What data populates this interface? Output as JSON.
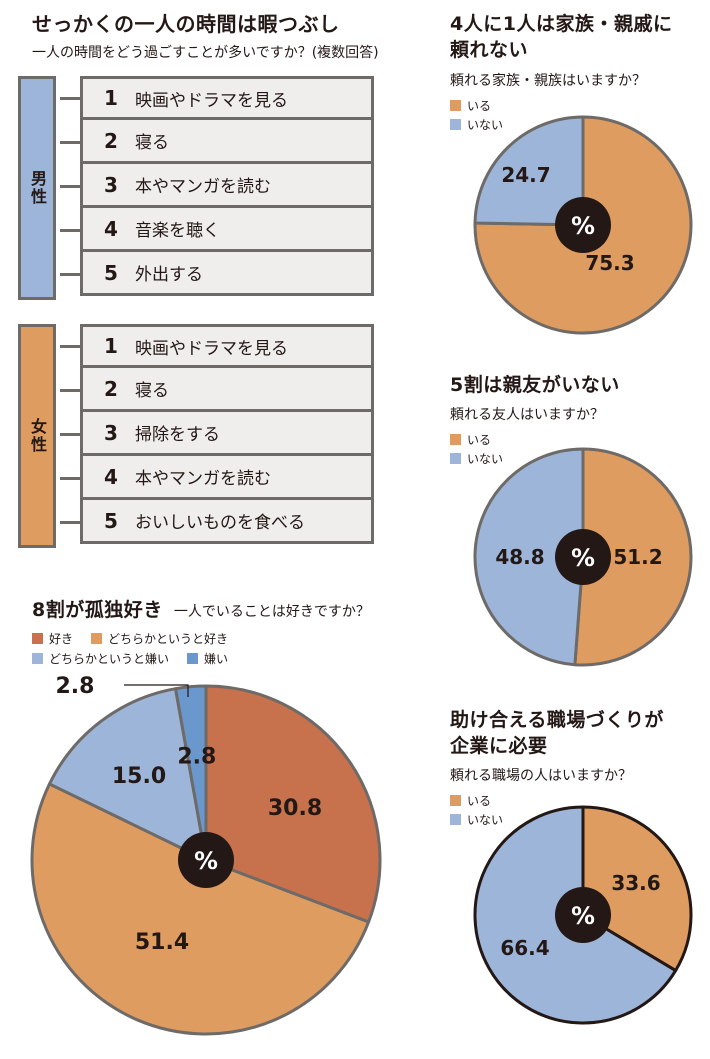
{
  "ranking": {
    "title": "せっかくの一人の時間は暇つぶし",
    "subtitle": "一人の時間をどう過ごすことが多いですか？(複数回答)",
    "male": {
      "label": "男性",
      "color": "#9db5d9",
      "items": [
        {
          "rank": "1",
          "text": "映画やドラマを見る"
        },
        {
          "rank": "2",
          "text": "寝る"
        },
        {
          "rank": "3",
          "text": "本やマンガを読む"
        },
        {
          "rank": "4",
          "text": "音楽を聴く"
        },
        {
          "rank": "5",
          "text": "外出する"
        }
      ]
    },
    "female": {
      "label": "女性",
      "color": "#df9c60",
      "items": [
        {
          "rank": "1",
          "text": "映画やドラマを見る"
        },
        {
          "rank": "2",
          "text": "寝る"
        },
        {
          "rank": "3",
          "text": "掃除をする"
        },
        {
          "rank": "4",
          "text": "本やマンガを読む"
        },
        {
          "rank": "5",
          "text": "おいしいものを食べる"
        }
      ]
    }
  },
  "center_label": "%",
  "chart_data": [
    {
      "type": "pie",
      "title": "8割が孤独好き",
      "subtitle": "一人でいることは好きですか？",
      "categories": [
        "好き",
        "どちらかというと好き",
        "どちらかというと嫌い",
        "嫌い"
      ],
      "values": [
        30.8,
        51.4,
        15.0,
        2.8
      ],
      "labels": [
        "30.8",
        "51.4",
        "15.0",
        "2.8"
      ],
      "colors": [
        "#c8714d",
        "#df9c60",
        "#9db5d9",
        "#6a97cc"
      ],
      "unit": "%"
    },
    {
      "type": "pie",
      "title_lines": [
        "4人に1人は家族・親戚に",
        "頼れない"
      ],
      "subtitle": "頼れる家族・親族はいますか？",
      "categories": [
        "いる",
        "いない"
      ],
      "values": [
        75.3,
        24.7
      ],
      "labels": [
        "75.3",
        "24.7"
      ],
      "colors": [
        "#df9c60",
        "#9db5d9"
      ],
      "unit": "%"
    },
    {
      "type": "pie",
      "title_lines": [
        "5割は親友がいない"
      ],
      "subtitle": "頼れる友人はいますか？",
      "categories": [
        "いる",
        "いない"
      ],
      "values": [
        51.2,
        48.8
      ],
      "labels": [
        "51.2",
        "48.8"
      ],
      "colors": [
        "#df9c60",
        "#9db5d9"
      ],
      "unit": "%"
    },
    {
      "type": "pie",
      "title_lines": [
        "助け合える職場づくりが",
        "企業に必要"
      ],
      "subtitle": "頼れる職場の人はいますか？",
      "categories": [
        "いる",
        "いない"
      ],
      "values": [
        33.6,
        66.4
      ],
      "labels": [
        "33.6",
        "66.4"
      ],
      "colors": [
        "#df9c60",
        "#9db5d9"
      ],
      "unit": "%"
    }
  ]
}
